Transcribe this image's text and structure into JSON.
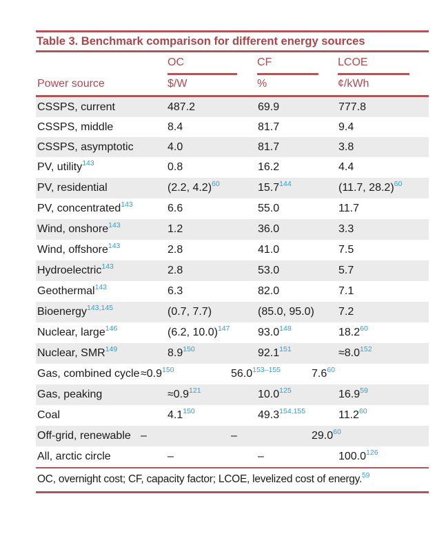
{
  "table": {
    "title": "Table 3.  Benchmark comparison for different energy sources",
    "columns": [
      {
        "name": "Power source",
        "unit": ""
      },
      {
        "name": "OC",
        "unit": "$/W"
      },
      {
        "name": "CF",
        "unit": "%"
      },
      {
        "name": "LCOE",
        "unit": "¢/kWh"
      }
    ],
    "header_row_label": "Power source",
    "rows": [
      {
        "source": "CSSPS, current",
        "source_ref": "",
        "oc": "487.2",
        "oc_ref": "",
        "cf": "69.9",
        "cf_ref": "",
        "lcoe": "777.8",
        "lcoe_ref": ""
      },
      {
        "source": "CSSPS, middle",
        "source_ref": "",
        "oc": "8.4",
        "oc_ref": "",
        "cf": "81.7",
        "cf_ref": "",
        "lcoe": "9.4",
        "lcoe_ref": ""
      },
      {
        "source": "CSSPS, asymptotic",
        "source_ref": "",
        "oc": "4.0",
        "oc_ref": "",
        "cf": "81.7",
        "cf_ref": "",
        "lcoe": "3.8",
        "lcoe_ref": ""
      },
      {
        "source": "PV, utility",
        "source_ref": "143",
        "oc": "0.8",
        "oc_ref": "",
        "cf": "16.2",
        "cf_ref": "",
        "lcoe": "4.4",
        "lcoe_ref": ""
      },
      {
        "source": "PV, residential",
        "source_ref": "",
        "oc": "(2.2, 4.2)",
        "oc_ref": "60",
        "cf": "15.7",
        "cf_ref": "144",
        "lcoe": "(11.7, 28.2)",
        "lcoe_ref": "60"
      },
      {
        "source": "PV, concentrated",
        "source_ref": "143",
        "oc": "6.6",
        "oc_ref": "",
        "cf": "55.0",
        "cf_ref": "",
        "lcoe": "11.7",
        "lcoe_ref": ""
      },
      {
        "source": "Wind, onshore",
        "source_ref": "143",
        "oc": "1.2",
        "oc_ref": "",
        "cf": "36.0",
        "cf_ref": "",
        "lcoe": "3.3",
        "lcoe_ref": ""
      },
      {
        "source": "Wind, offshore",
        "source_ref": "143",
        "oc": "2.8",
        "oc_ref": "",
        "cf": "41.0",
        "cf_ref": "",
        "lcoe": "7.5",
        "lcoe_ref": ""
      },
      {
        "source": "Hydroelectric",
        "source_ref": "143",
        "oc": "2.8",
        "oc_ref": "",
        "cf": "53.0",
        "cf_ref": "",
        "lcoe": "5.7",
        "lcoe_ref": ""
      },
      {
        "source": "Geothermal",
        "source_ref": "143",
        "oc": "6.3",
        "oc_ref": "",
        "cf": "82.0",
        "cf_ref": "",
        "lcoe": "7.1",
        "lcoe_ref": ""
      },
      {
        "source": "Bioenergy",
        "source_ref": "143,145",
        "oc": "(0.7, 7.7)",
        "oc_ref": "",
        "cf": "(85.0, 95.0)",
        "cf_ref": "",
        "lcoe": "7.2",
        "lcoe_ref": ""
      },
      {
        "source": "Nuclear, large",
        "source_ref": "146",
        "oc": "(6.2, 10.0)",
        "oc_ref": "147",
        "cf": "93.0",
        "cf_ref": "148",
        "lcoe": "18.2",
        "lcoe_ref": "60"
      },
      {
        "source": "Nuclear, SMR",
        "source_ref": "149",
        "oc": "8.9",
        "oc_ref": "150",
        "cf": "92.1",
        "cf_ref": "151",
        "lcoe": "≈8.0",
        "lcoe_ref": "152"
      },
      {
        "source": "Gas, combined cycle",
        "source_ref": "",
        "oc": "≈0.9",
        "oc_ref": "150",
        "cf": "56.0",
        "cf_ref": "153–155",
        "lcoe": "7.6",
        "lcoe_ref": "60"
      },
      {
        "source": "Gas, peaking",
        "source_ref": "",
        "oc": "≈0.9",
        "oc_ref": "121",
        "cf": "10.0",
        "cf_ref": "125",
        "lcoe": "16.9",
        "lcoe_ref": "59"
      },
      {
        "source": "Coal",
        "source_ref": "",
        "oc": "4.1",
        "oc_ref": "150",
        "cf": "49.3",
        "cf_ref": "154,155",
        "lcoe": "11.2",
        "lcoe_ref": "60"
      },
      {
        "source": "Off-grid, renewable",
        "source_ref": "",
        "oc": "–",
        "oc_ref": "",
        "cf": "–",
        "cf_ref": "",
        "lcoe": "29.0",
        "lcoe_ref": "60"
      },
      {
        "source": "All, arctic circle",
        "source_ref": "",
        "oc": "–",
        "oc_ref": "",
        "cf": "–",
        "cf_ref": "",
        "lcoe": "100.0",
        "lcoe_ref": "126"
      }
    ],
    "footnote": "OC, overnight cost; CF, capacity factor; LCOE, levelized cost of energy.",
    "footnote_ref": "59"
  },
  "colors": {
    "accent": "#b05459",
    "title": "#a8464c",
    "reference": "#2f9fd4",
    "row_shade": "#ebebeb"
  }
}
